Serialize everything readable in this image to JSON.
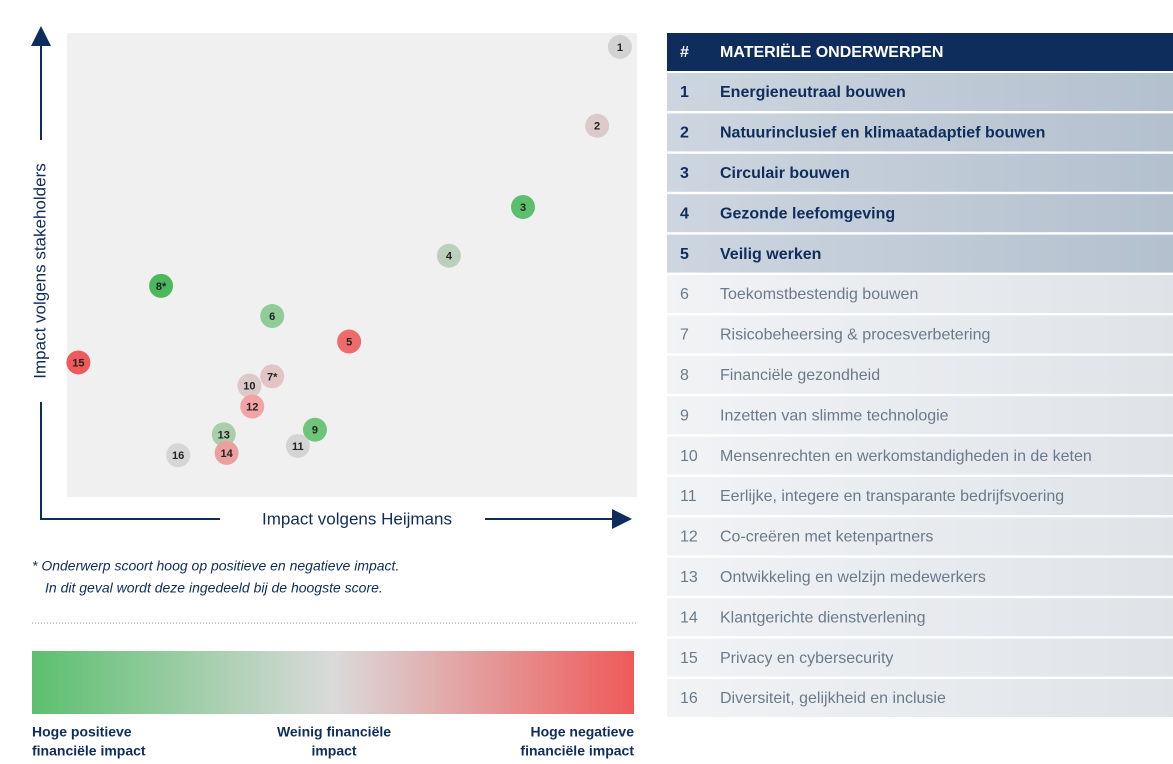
{
  "chart_data": {
    "type": "scatter",
    "xlabel": "Impact volgens Heijmans",
    "ylabel": "Impact volgens  stakeholders",
    "xlim": [
      0,
      100
    ],
    "ylim": [
      0,
      100
    ],
    "point_labels": [
      "1",
      "2",
      "3",
      "4",
      "5",
      "6",
      "7*",
      "8*",
      "9",
      "10",
      "11",
      "12",
      "13",
      "14",
      "15",
      "16"
    ],
    "x": [
      97,
      93,
      80,
      67,
      49.5,
      36,
      36,
      16.5,
      43.5,
      32,
      40.5,
      32.5,
      27.5,
      28,
      2,
      19.5
    ],
    "values": [
      97,
      80,
      62.5,
      52,
      33.5,
      39,
      26,
      45.5,
      14.5,
      24,
      11,
      19.5,
      13.5,
      9.5,
      29,
      9
    ],
    "colors": [
      "#d2d2d2",
      "#dccaca",
      "#5cbf6e",
      "#bccfbc",
      "#ef6b6b",
      "#8fcc98",
      "#e2c4c4",
      "#4cb85e",
      "#6fc47c",
      "#dccaca",
      "#d4d4d4",
      "#f2a3a3",
      "#aacdaa",
      "#eba0a0",
      "#ef5a5a",
      "#d6d6d6"
    ]
  },
  "footnote": [
    "* Onderwerp scoort hoog op positieve en negatieve impact.",
    "In dit geval wordt deze ingedeeld bij de hoogste score."
  ],
  "legend": [
    [
      "Hoge positieve",
      "financiële impact"
    ],
    [
      "Weinig financiële",
      "impact"
    ],
    [
      "Hoge negatieve",
      "financiële impact"
    ]
  ],
  "table": {
    "header": [
      "#",
      "MATERIËLE ONDERWERPEN"
    ],
    "rows": [
      [
        "1",
        "Energieneutraal bouwen"
      ],
      [
        "2",
        "Natuurinclusief  en klimaatadaptief bouwen"
      ],
      [
        "3",
        "Circulair bouwen"
      ],
      [
        "4",
        "Gezonde leefomgeving"
      ],
      [
        "5",
        "Veilig werken"
      ],
      [
        "6",
        "Toekomstbestendig bouwen"
      ],
      [
        "7",
        "Risicobeheersing & procesverbetering"
      ],
      [
        "8",
        "Financiële gezondheid"
      ],
      [
        "9",
        "Inzetten van slimme technologie"
      ],
      [
        "10",
        "Mensenrechten en werkomstandigheden in de keten"
      ],
      [
        "11",
        "Eerlijke, integere en transparante bedrijfsvoering"
      ],
      [
        "12",
        "Co-creëren met ketenpartners"
      ],
      [
        "13",
        "Ontwikkeling en welzijn medewerkers"
      ],
      [
        "14",
        "Klantgerichte dienstverlening"
      ],
      [
        "15",
        "Privacy en cybersecurity"
      ],
      [
        "16",
        "Diversiteit, gelijkheid en inclusie"
      ]
    ]
  }
}
